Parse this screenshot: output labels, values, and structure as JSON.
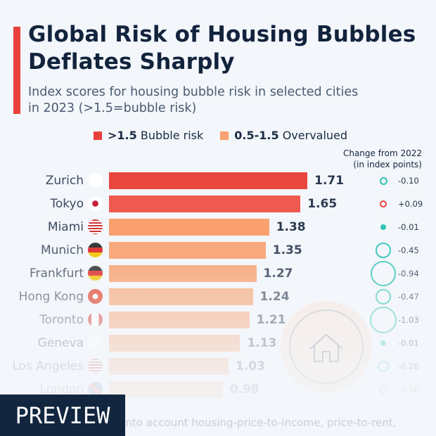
{
  "title_line1": "Global Risk of Housing Bubbles",
  "title_line2": "Deflates Sharply",
  "subtitle_line1": "Index scores for housing bubble risk in selected cities",
  "subtitle_line2": "in 2023 (>1.5=bubble risk)",
  "legend": [
    {
      "label": ">1.5",
      "label2": "Bubble risk",
      "color": "#e8403a"
    },
    {
      "label": "0.5-1.5",
      "label2": "Overvalued",
      "color": "#f9a06e"
    }
  ],
  "change_header_line1": "Change from 2022",
  "change_header_line2": "(in index points)",
  "footnote": "g into account housing-price-to-income, price-to-rent,",
  "preview_label": "PREVIEW",
  "chart_data": {
    "type": "bar",
    "orientation": "horizontal",
    "categories": [
      "Zurich",
      "Tokyo",
      "Miami",
      "Munich",
      "Frankfurt",
      "Hong Kong",
      "Toronto",
      "Geneva",
      "Los Angeles",
      "London"
    ],
    "values": [
      1.71,
      1.65,
      1.38,
      1.35,
      1.27,
      1.24,
      1.21,
      1.13,
      1.03,
      0.98
    ],
    "value_labels": [
      "1.71",
      "1.65",
      "1.38",
      "1.35",
      "1.27",
      "1.24",
      "1.21",
      "1.13",
      "1.03",
      "0.98"
    ],
    "change_from_2022": [
      "-0.10",
      "+0.09",
      "-0.01",
      "-0.45",
      "-0.94",
      "-0.47",
      "-1.03",
      "-0.01",
      "-0.28",
      "-0.10"
    ],
    "flags": [
      "switzerland",
      "japan",
      "usa",
      "germany",
      "germany",
      "hong-kong",
      "canada",
      "switzerland",
      "usa",
      "uk"
    ],
    "colors": {
      "bubble": "#e8403a",
      "overvalued": "#f9a06e",
      "decrease": "#2ec4b6",
      "increase": "#e8403a"
    },
    "threshold": 1.5
  }
}
